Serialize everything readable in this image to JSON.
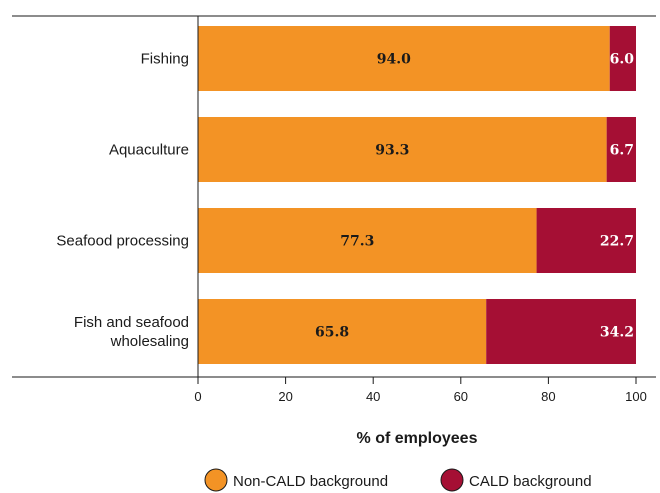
{
  "chart_data": {
    "type": "bar",
    "orientation": "horizontal",
    "stacked": true,
    "categories": [
      "Fishing",
      "Aquaculture",
      "Seafood processing",
      "Fish and seafood wholesaling"
    ],
    "category_lines": [
      [
        "Fishing"
      ],
      [
        "Aquaculture"
      ],
      [
        "Seafood processing"
      ],
      [
        "Fish and seafood",
        "wholesaling"
      ]
    ],
    "series": [
      {
        "name": "Non-CALD background",
        "color": "#F39325",
        "label_style": "dark",
        "values": [
          94.0,
          93.3,
          77.3,
          65.8
        ],
        "labels": [
          "94.0",
          "93.3",
          "77.3",
          "65.8"
        ]
      },
      {
        "name": "CALD background",
        "color": "#A50F34",
        "label_style": "light",
        "values": [
          6.0,
          6.7,
          22.7,
          34.2
        ],
        "labels": [
          "6.0",
          "6.7",
          "22.7",
          "34.2"
        ]
      }
    ],
    "xlabel": "% of employees",
    "xlim": [
      0,
      100
    ],
    "xticks": [
      "0",
      "20",
      "40",
      "60",
      "80",
      "100"
    ],
    "legend_position": "bottom-right",
    "grid": false
  }
}
